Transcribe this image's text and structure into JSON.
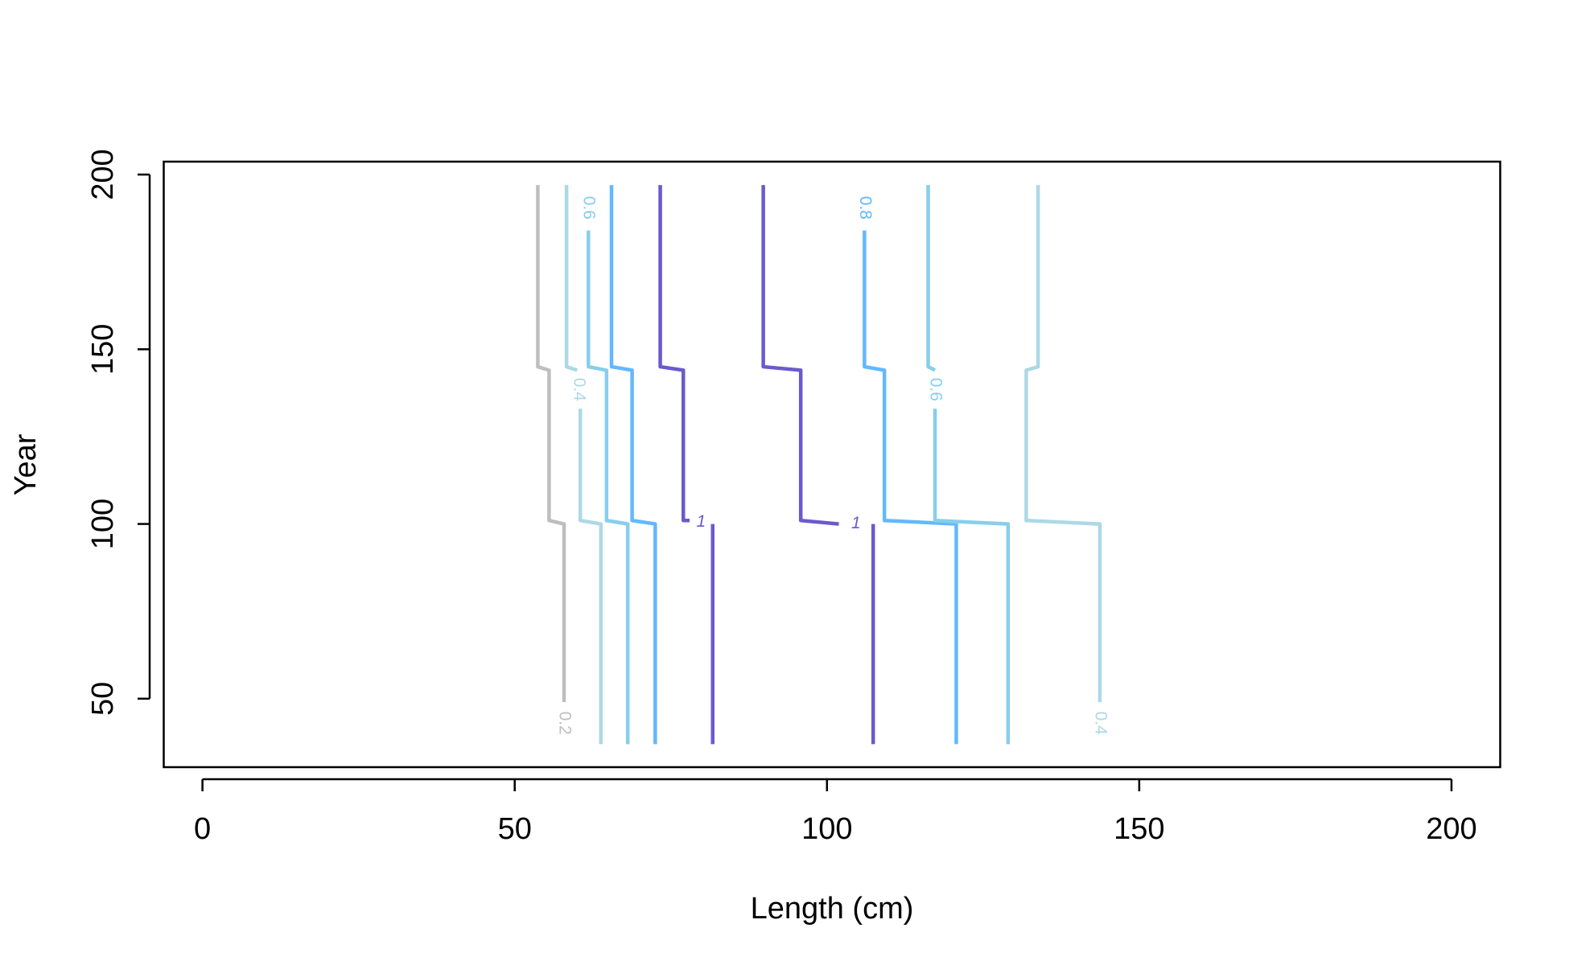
{
  "chart_data": {
    "type": "contour",
    "x_label": "Length (cm)",
    "y_label": "Year",
    "xlim": [
      -6.2,
      207.8
    ],
    "ylim": [
      30.4,
      203.7
    ],
    "xticks": [
      0,
      50,
      100,
      150,
      200
    ],
    "yticks": [
      50,
      100,
      150,
      200
    ],
    "series": [
      {
        "name": "0.2",
        "color": "#bebebe",
        "x": [
          53.7,
          53.7,
          55.5,
          55.5,
          57.9,
          57.9
        ],
        "y": [
          197,
          145,
          144,
          101,
          100,
          49
        ]
      },
      {
        "name": "0.4",
        "color": "#add8e6",
        "x": [
          58.3,
          58.3,
          60,
          null,
          60.5,
          60.5,
          63.8,
          63.8
        ],
        "y": [
          197,
          145,
          144,
          null,
          133,
          101,
          100,
          37
        ]
      },
      {
        "name": "0.6",
        "color": "#87ceeb",
        "x": [
          61.8,
          null,
          61.8,
          61.8,
          64.7,
          64.7,
          68.1,
          68.1
        ],
        "y": [
          197,
          null,
          184,
          145,
          144,
          101,
          100,
          37
        ]
      },
      {
        "color": "#63b8ff",
        "x": [
          65.5,
          65.5,
          68.8,
          68.8,
          72.5,
          72.5
        ],
        "y": [
          197,
          145,
          144,
          101,
          100,
          37
        ]
      },
      {
        "name": "1",
        "color": "#6a5acd",
        "x": [
          73.3,
          73.3,
          77,
          77,
          78,
          null,
          81.7,
          81.7
        ],
        "y": [
          197,
          145,
          144,
          101,
          101,
          null,
          100,
          37
        ]
      },
      {
        "name": "1",
        "color": "#6a5acd",
        "x": [
          89.8,
          89.8,
          95.8,
          95.8,
          101.9,
          null,
          107.4,
          107.4
        ],
        "y": [
          197,
          145,
          144,
          101,
          100,
          null,
          100,
          37
        ]
      },
      {
        "name": "0.8",
        "color": "#63b8ff",
        "x": [
          106,
          null,
          106,
          106,
          109.2,
          109.2,
          120.7,
          120.7
        ],
        "y": [
          197,
          null,
          184,
          145,
          144,
          101,
          100,
          37
        ]
      },
      {
        "name": "0.6",
        "color": "#87ceeb",
        "x": [
          116.2,
          116.2,
          117.3,
          null,
          117.3,
          117.3,
          129,
          129
        ],
        "y": [
          197,
          145,
          144,
          null,
          133,
          101,
          100,
          37
        ]
      },
      {
        "name": "0.4",
        "color": "#add8e6",
        "x": [
          133.8,
          133.8,
          131.9,
          131.9,
          143.7,
          143.7
        ],
        "y": [
          197,
          145,
          144,
          101,
          100,
          49
        ]
      }
    ]
  }
}
